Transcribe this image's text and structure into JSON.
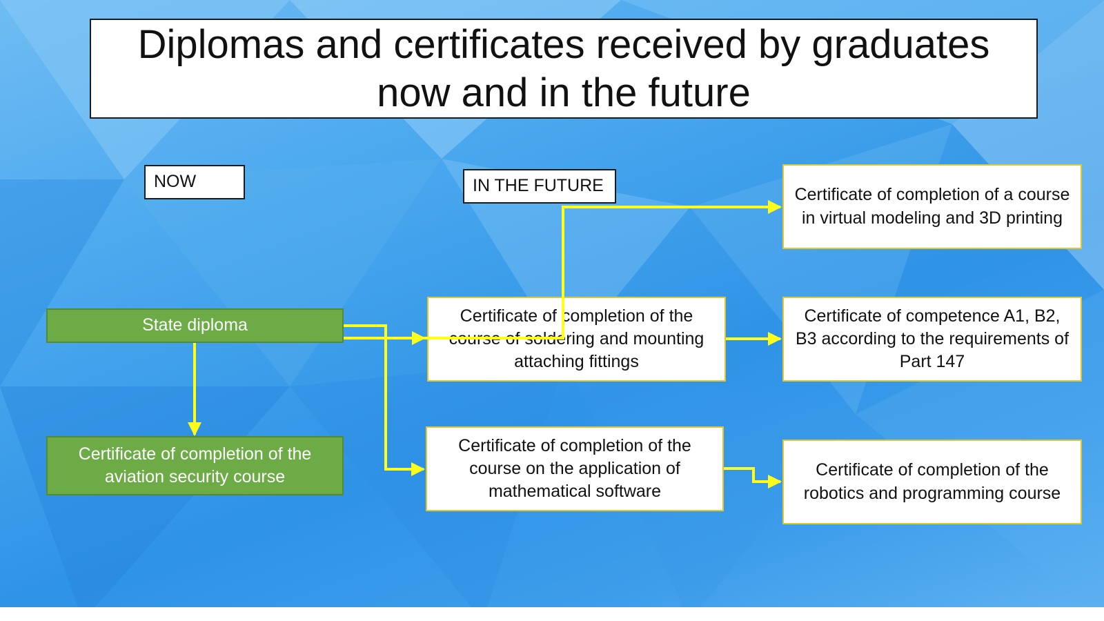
{
  "title": "Diplomas and certificates received by graduates now and in the future",
  "labels": {
    "now": "NOW",
    "future": "IN THE FUTURE"
  },
  "nodes": {
    "state_diploma": "State diploma",
    "aviation_security": "Certificate of completion of the aviation security course",
    "soldering": "Certificate of completion of the course of soldering and mounting attaching fittings",
    "math_software": "Certificate of completion of the course on the application of mathematical software",
    "virtual_modeling": "Certificate of completion of a course in virtual modeling and 3D printing",
    "competence": "Certificate of competence A1, B2, B3 according to the requirements of Part 147",
    "robotics": "Certificate of completion of the robotics and programming course"
  },
  "colors": {
    "arrow": "#ffff1a",
    "now_box_fill": "#6cab45",
    "future_box_border": "#e4c62a",
    "background": "#3d9deb"
  }
}
